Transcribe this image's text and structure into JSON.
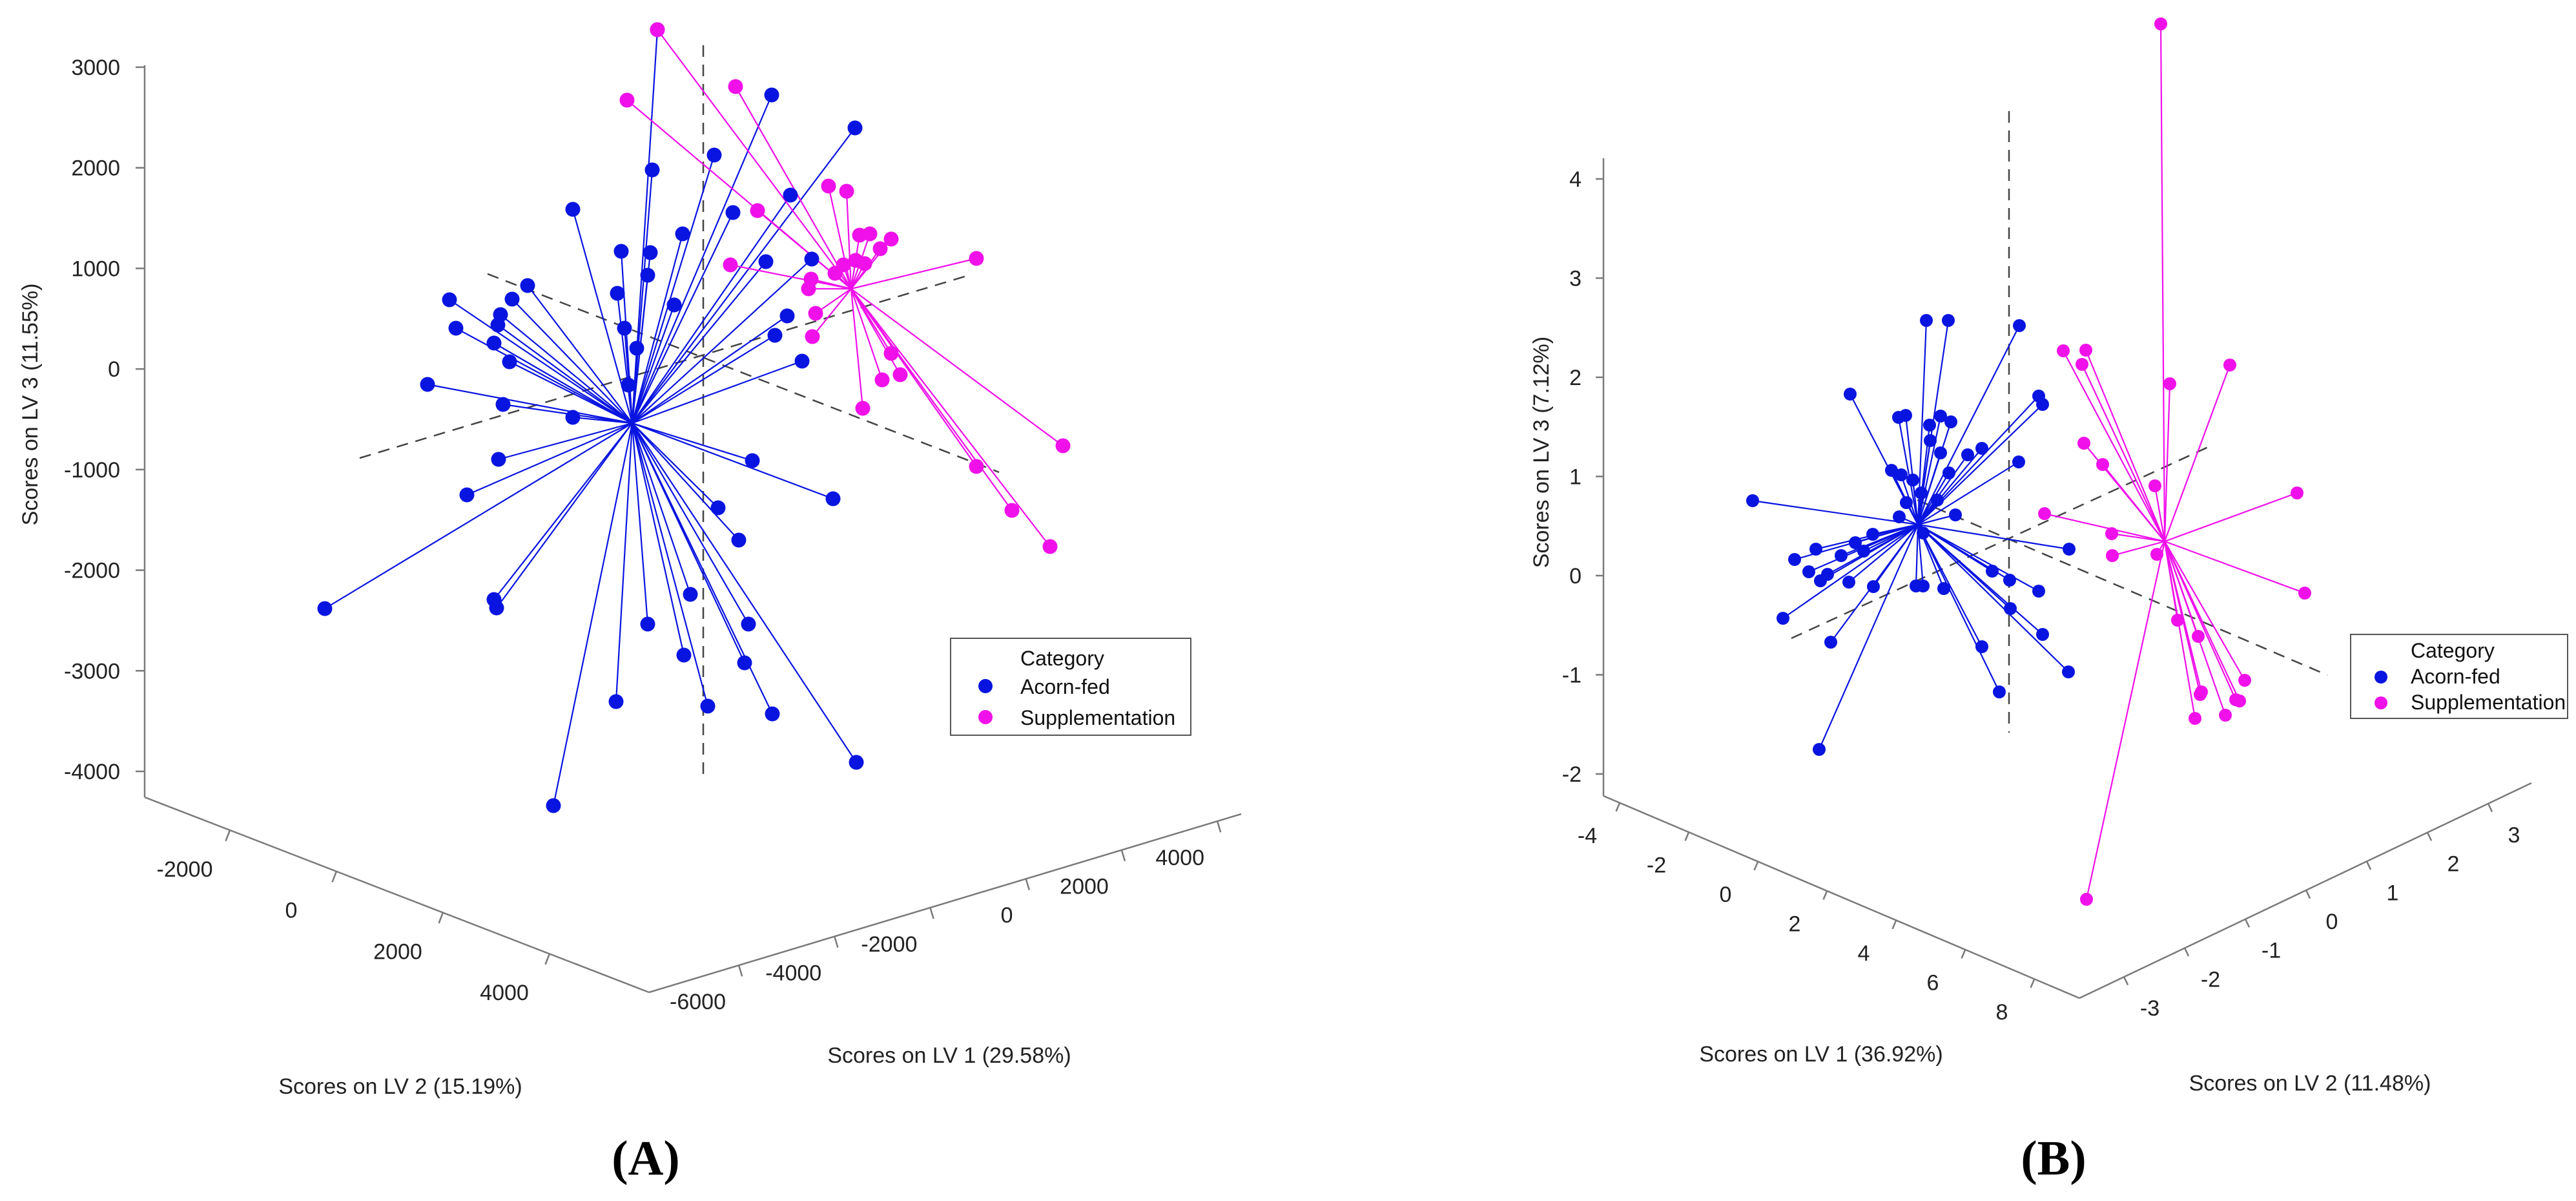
{
  "colors": {
    "acorn": "#0a14e0",
    "supplementation": "#f010ea",
    "axis": "#7a7a7a",
    "dashed": "#444444"
  },
  "chart_data": [
    {
      "type": "scatter",
      "panel_label": "(A)",
      "xlabel": "Scores on LV 1 (29.58%)",
      "ylabel": "Scores on LV 2 (15.19%)",
      "zlabel": "Scores on LV 3 (11.55%)",
      "x_ticks": [
        "-6000",
        "-4000",
        "-2000",
        "0",
        "2000",
        "4000"
      ],
      "y_ticks": [
        "-2000",
        "0",
        "2000",
        "4000"
      ],
      "z_ticks": [
        "3000",
        "2000",
        "1000",
        "0",
        "-1000",
        "-2000",
        "-3000",
        "-4000"
      ],
      "legend": {
        "title": "Category",
        "entries": [
          "Acorn-fed",
          "Supplementation"
        ],
        "position": "right"
      },
      "grid": false,
      "series": [
        {
          "name": "Acorn-fed",
          "centroid": [
            979,
            655
          ],
          "points": [
            [
              1018,
              46
            ],
            [
              1195,
              147
            ],
            [
              1324,
              198
            ],
            [
              1106,
              240
            ],
            [
              1010,
              263
            ],
            [
              1135,
              329
            ],
            [
              1057,
              362
            ],
            [
              887,
              324
            ],
            [
              1007,
              391
            ],
            [
              962,
              389
            ],
            [
              1003,
              426
            ],
            [
              1257,
              401
            ],
            [
              956,
              454
            ],
            [
              696,
              464
            ],
            [
              1044,
              472
            ],
            [
              817,
              442
            ],
            [
              793,
              463
            ],
            [
              775,
              487
            ],
            [
              967,
              508
            ],
            [
              706,
              508
            ],
            [
              771,
              503
            ],
            [
              1200,
              519
            ],
            [
              1219,
              489
            ],
            [
              765,
              531
            ],
            [
              1242,
              559
            ],
            [
              986,
              539
            ],
            [
              789,
              560
            ],
            [
              973,
              596
            ],
            [
              662,
              595
            ],
            [
              779,
              626
            ],
            [
              887,
              646
            ],
            [
              1165,
              713
            ],
            [
              772,
              711
            ],
            [
              1290,
              772
            ],
            [
              723,
              766
            ],
            [
              1112,
              786
            ],
            [
              1144,
              836
            ],
            [
              765,
              928
            ],
            [
              769,
              941
            ],
            [
              1069,
              920
            ],
            [
              1003,
              966
            ],
            [
              1159,
              966
            ],
            [
              1059,
              1014
            ],
            [
              1153,
              1026
            ],
            [
              954,
              1086
            ],
            [
              1096,
              1093
            ],
            [
              1196,
              1105
            ],
            [
              1326,
              1180
            ],
            [
              503,
              942
            ],
            [
              857,
              1247
            ],
            [
              1224,
              302
            ],
            [
              1186,
              405
            ]
          ]
        },
        {
          "name": "Supplementation",
          "centroid": [
            1318,
            447
          ],
          "points": [
            [
              1018,
              46
            ],
            [
              971,
              155
            ],
            [
              1139,
              134
            ],
            [
              1173,
              326
            ],
            [
              1283,
              288
            ],
            [
              1311,
              296
            ],
            [
              1331,
              364
            ],
            [
              1347,
              362
            ],
            [
              1380,
              370
            ],
            [
              1363,
              385
            ],
            [
              1325,
              403
            ],
            [
              1306,
              410
            ],
            [
              1293,
              423
            ],
            [
              1339,
              408
            ],
            [
              1256,
              432
            ],
            [
              1252,
              447
            ],
            [
              1131,
              410
            ],
            [
              1512,
              400
            ],
            [
              1263,
              485
            ],
            [
              1258,
              521
            ],
            [
              1380,
              547
            ],
            [
              1394,
              580
            ],
            [
              1366,
              588
            ],
            [
              1336,
              632
            ],
            [
              1646,
              690
            ],
            [
              1512,
              722
            ],
            [
              1567,
              790
            ],
            [
              1626,
              846
            ]
          ]
        }
      ]
    },
    {
      "type": "scatter",
      "panel_label": "(B)",
      "xlabel": "Scores on LV 1 (36.92%)",
      "ylabel": "Scores on LV 2 (11.48%)",
      "zlabel": "Scores on LV 3 (7.12%)",
      "x_ticks": [
        "-4",
        "-2",
        "0",
        "2",
        "4",
        "6",
        "8"
      ],
      "y_ticks": [
        "-3",
        "-2",
        "-1",
        "0",
        "1",
        "2",
        "3"
      ],
      "z_ticks": [
        "4",
        "3",
        "2",
        "1",
        "0",
        "-1",
        "-2"
      ],
      "legend": {
        "title": "Category",
        "entries": [
          "Acorn-fed",
          "Supplementation"
        ],
        "position": "right"
      },
      "grid": false,
      "series": [
        {
          "name": "Acorn-fed",
          "centroid": [
            2970,
            812
          ],
          "points": [
            [
              2983,
              496
            ],
            [
              3017,
              496
            ],
            [
              3127,
              504
            ],
            [
              2865,
              610
            ],
            [
              2940,
              646
            ],
            [
              2951,
              643
            ],
            [
              3005,
              644
            ],
            [
              2988,
              658
            ],
            [
              3021,
              653
            ],
            [
              3163,
              626
            ],
            [
              3157,
              613
            ],
            [
              3069,
              694
            ],
            [
              2989,
              682
            ],
            [
              3005,
              701
            ],
            [
              3047,
              704
            ],
            [
              3018,
              732
            ],
            [
              2929,
              728
            ],
            [
              2944,
              735
            ],
            [
              2962,
              743
            ],
            [
              2975,
              763
            ],
            [
              2952,
              778
            ],
            [
              3000,
              774
            ],
            [
              3126,
              715
            ],
            [
              2714,
              775
            ],
            [
              2941,
              800
            ],
            [
              3028,
              797
            ],
            [
              3204,
              850
            ],
            [
              2900,
              827
            ],
            [
              2978,
              825
            ],
            [
              2873,
              840
            ],
            [
              2779,
              866
            ],
            [
              2812,
              850
            ],
            [
              2801,
              885
            ],
            [
              2830,
              889
            ],
            [
              2851,
              860
            ],
            [
              2886,
              853
            ],
            [
              2863,
              901
            ],
            [
              2819,
              899
            ],
            [
              2901,
              908
            ],
            [
              2967,
              907
            ],
            [
              2978,
              907
            ],
            [
              3010,
              911
            ],
            [
              3085,
              884
            ],
            [
              3112,
              898
            ],
            [
              3157,
              915
            ],
            [
              2761,
              957
            ],
            [
              2835,
              994
            ],
            [
              3113,
              942
            ],
            [
              3163,
              982
            ],
            [
              3069,
              1001
            ],
            [
              3203,
              1040
            ],
            [
              3096,
              1071
            ],
            [
              2817,
              1160
            ]
          ]
        },
        {
          "name": "Supplementation",
          "centroid": [
            3352,
            838
          ],
          "points": [
            [
              3346,
              37
            ],
            [
              3195,
              543
            ],
            [
              3230,
              542
            ],
            [
              3224,
              564
            ],
            [
              3453,
              565
            ],
            [
              3360,
              594
            ],
            [
              3227,
              686
            ],
            [
              3256,
              719
            ],
            [
              3337,
              752
            ],
            [
              3166,
              795
            ],
            [
              3557,
              763
            ],
            [
              3270,
              826
            ],
            [
              3340,
              858
            ],
            [
              3271,
              860
            ],
            [
              3569,
              918
            ],
            [
              3372,
              960
            ],
            [
              3404,
              985
            ],
            [
              3476,
              1053
            ],
            [
              3409,
              1071
            ],
            [
              3462,
              1083
            ],
            [
              3468,
              1085
            ],
            [
              3407,
              1075
            ],
            [
              3446,
              1107
            ],
            [
              3399,
              1112
            ],
            [
              3231,
              1392
            ]
          ]
        }
      ]
    }
  ]
}
